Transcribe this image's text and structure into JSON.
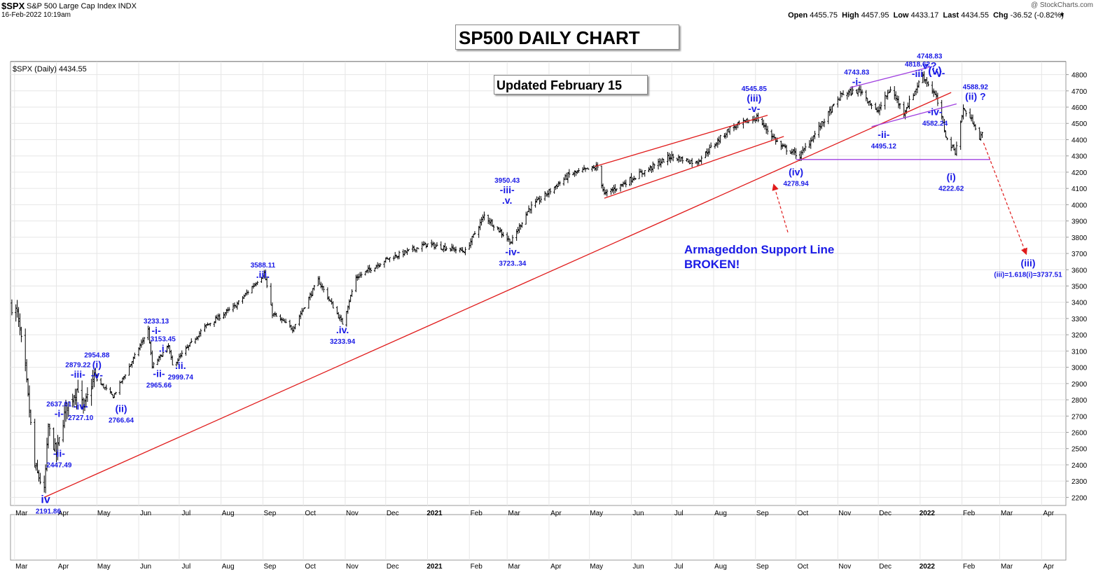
{
  "header": {
    "symbol": "$SPX",
    "description": "S&P 500 Large Cap Index  INDX",
    "date": "16-Feb-2022 10:19am",
    "brand": "@ StockCharts.com",
    "ohlc": {
      "open_label": "Open",
      "open": "4455.75",
      "high_label": "High",
      "high": "4457.95",
      "low_label": "Low",
      "low": "4433.17",
      "last_label": "Last",
      "last": "4434.55",
      "chg_label": "Chg",
      "chg": "-36.52 (-0.82%)"
    }
  },
  "title_box": "SP500 DAILY CHART",
  "updated_box": "Updated February 15",
  "legend": "$SPX (Daily) 4434.55",
  "annotation": {
    "line1": "Armageddon Support Line",
    "line2": "BROKEN!"
  },
  "colors": {
    "price": "#000000",
    "wave_label": "#1a1ae6",
    "support_line": "#e01b1b",
    "channel_purple": "#a040e0",
    "grid": "#e6e6e6"
  },
  "chart_data": {
    "type": "ohlc",
    "title": "SP500 DAILY CHART",
    "ylim": [
      2150,
      4880
    ],
    "yticks": [
      2200,
      2300,
      2400,
      2500,
      2600,
      2700,
      2800,
      2900,
      3000,
      3100,
      3200,
      3300,
      3400,
      3500,
      3600,
      3700,
      3800,
      3900,
      4000,
      4100,
      4200,
      4300,
      4400,
      4500,
      4600,
      4700,
      4800
    ],
    "xlim": [
      "2020-02-27",
      "2022-04-19"
    ],
    "x_ticks": [
      {
        "date": "2020-03-01",
        "label": "Mar"
      },
      {
        "date": "2020-04-01",
        "label": "Apr"
      },
      {
        "date": "2020-05-01",
        "label": "May"
      },
      {
        "date": "2020-06-01",
        "label": "Jun"
      },
      {
        "date": "2020-07-01",
        "label": "Jul"
      },
      {
        "date": "2020-08-01",
        "label": "Aug"
      },
      {
        "date": "2020-09-01",
        "label": "Sep"
      },
      {
        "date": "2020-10-01",
        "label": "Oct"
      },
      {
        "date": "2020-11-01",
        "label": "Nov"
      },
      {
        "date": "2020-12-01",
        "label": "Dec"
      },
      {
        "date": "2021-01-01",
        "label": "2021"
      },
      {
        "date": "2021-02-01",
        "label": "Feb"
      },
      {
        "date": "2021-03-01",
        "label": "Mar"
      },
      {
        "date": "2021-04-01",
        "label": "Apr"
      },
      {
        "date": "2021-05-01",
        "label": "May"
      },
      {
        "date": "2021-06-01",
        "label": "Jun"
      },
      {
        "date": "2021-07-01",
        "label": "Jul"
      },
      {
        "date": "2021-08-01",
        "label": "Aug"
      },
      {
        "date": "2021-09-01",
        "label": "Sep"
      },
      {
        "date": "2021-10-01",
        "label": "Oct"
      },
      {
        "date": "2021-11-01",
        "label": "Nov"
      },
      {
        "date": "2021-12-01",
        "label": "Dec"
      },
      {
        "date": "2022-01-01",
        "label": "2022"
      },
      {
        "date": "2022-02-01",
        "label": "Feb"
      },
      {
        "date": "2022-03-01",
        "label": "Mar"
      },
      {
        "date": "2022-04-01",
        "label": "Apr"
      }
    ],
    "price_anchors": [
      {
        "date": "2020-02-28",
        "close": 3380
      },
      {
        "date": "2020-03-03",
        "close": 3330
      },
      {
        "date": "2020-03-09",
        "close": 2980
      },
      {
        "date": "2020-03-12",
        "close": 2730
      },
      {
        "date": "2020-03-16",
        "close": 2390
      },
      {
        "date": "2020-03-23",
        "close": 2237
      },
      {
        "date": "2020-03-26",
        "close": 2630
      },
      {
        "date": "2020-04-01",
        "close": 2470
      },
      {
        "date": "2020-04-08",
        "close": 2750
      },
      {
        "date": "2020-04-17",
        "close": 2875
      },
      {
        "date": "2020-04-21",
        "close": 2740
      },
      {
        "date": "2020-04-29",
        "close": 2940
      },
      {
        "date": "2020-05-13",
        "close": 2820
      },
      {
        "date": "2020-05-27",
        "close": 3035
      },
      {
        "date": "2020-06-08",
        "close": 3232
      },
      {
        "date": "2020-06-11",
        "close": 3002
      },
      {
        "date": "2020-06-23",
        "close": 3130
      },
      {
        "date": "2020-06-26",
        "close": 3010
      },
      {
        "date": "2020-07-20",
        "close": 3250
      },
      {
        "date": "2020-08-12",
        "close": 3380
      },
      {
        "date": "2020-09-02",
        "close": 3580
      },
      {
        "date": "2020-09-08",
        "close": 3330
      },
      {
        "date": "2020-09-23",
        "close": 3237
      },
      {
        "date": "2020-10-12",
        "close": 3535
      },
      {
        "date": "2020-10-30",
        "close": 3270
      },
      {
        "date": "2020-11-09",
        "close": 3550
      },
      {
        "date": "2020-12-01",
        "close": 3662
      },
      {
        "date": "2020-12-31",
        "close": 3756
      },
      {
        "date": "2021-01-29",
        "close": 3714
      },
      {
        "date": "2021-02-12",
        "close": 3934
      },
      {
        "date": "2021-03-04",
        "close": 3768
      },
      {
        "date": "2021-03-17",
        "close": 3974
      },
      {
        "date": "2021-04-16",
        "close": 4185
      },
      {
        "date": "2021-05-07",
        "close": 4232
      },
      {
        "date": "2021-05-12",
        "close": 4063
      },
      {
        "date": "2021-06-30",
        "close": 4297
      },
      {
        "date": "2021-07-19",
        "close": 4258
      },
      {
        "date": "2021-08-13",
        "close": 4468
      },
      {
        "date": "2021-09-02",
        "close": 4536
      },
      {
        "date": "2021-09-20",
        "close": 4357
      },
      {
        "date": "2021-10-04",
        "close": 4300
      },
      {
        "date": "2021-11-04",
        "close": 4680
      },
      {
        "date": "2021-11-18",
        "close": 4704
      },
      {
        "date": "2021-11-30",
        "close": 4567
      },
      {
        "date": "2021-12-10",
        "close": 4712
      },
      {
        "date": "2021-12-20",
        "close": 4568
      },
      {
        "date": "2022-01-03",
        "close": 4796
      },
      {
        "date": "2022-01-13",
        "close": 4659
      },
      {
        "date": "2022-01-21",
        "close": 4398
      },
      {
        "date": "2022-01-27",
        "close": 4326
      },
      {
        "date": "2022-02-02",
        "close": 4589
      },
      {
        "date": "2022-02-08",
        "close": 4521
      },
      {
        "date": "2022-02-10",
        "close": 4504
      },
      {
        "date": "2022-02-14",
        "close": 4401
      },
      {
        "date": "2022-02-16",
        "close": 4434
      }
    ],
    "trendlines": [
      {
        "name": "Armageddon Support Line",
        "color": "red",
        "points": [
          [
            "2020-03-23",
            2200
          ],
          [
            "2022-01-24",
            4690
          ]
        ]
      },
      {
        "name": "channel-upper",
        "color": "red",
        "points": [
          [
            "2021-05-05",
            4235
          ],
          [
            "2021-09-10",
            4550
          ]
        ]
      },
      {
        "name": "channel-lower",
        "color": "red",
        "points": [
          [
            "2021-05-12",
            4040
          ],
          [
            "2021-09-22",
            4420
          ]
        ]
      },
      {
        "name": "wedge-upper",
        "color": "purple",
        "points": [
          [
            "2021-11-10",
            4720
          ],
          [
            "2022-01-10",
            4850
          ]
        ]
      },
      {
        "name": "wedge-lower",
        "color": "purple",
        "points": [
          [
            "2021-11-26",
            4480
          ],
          [
            "2022-01-28",
            4620
          ]
        ]
      },
      {
        "name": "support-horizontal",
        "color": "purple",
        "points": [
          [
            "2021-10-01",
            4278
          ],
          [
            "2022-02-22",
            4278
          ]
        ]
      }
    ],
    "projection": {
      "from": [
        "2022-02-17",
        4380
      ],
      "to": [
        "2022-03-20",
        3710
      ]
    },
    "pointer_arrow": {
      "from": [
        "2021-09-25",
        3830
      ],
      "to": [
        "2021-09-15",
        4110
      ]
    },
    "wave_labels": [
      {
        "date": "2020-03-24",
        "price": 2165,
        "lines": [
          "iv"
        ],
        "big": true
      },
      {
        "date": "2020-03-26",
        "price": 2100,
        "lines": [
          "2191.86"
        ]
      },
      {
        "date": "2020-04-03",
        "price": 2760,
        "lines": [
          "2637.01",
          "-i-"
        ]
      },
      {
        "date": "2020-04-03",
        "price": 2450,
        "lines": [
          "-ii-",
          "2447.49"
        ]
      },
      {
        "date": "2020-04-17",
        "price": 3000,
        "lines": [
          "2879.22",
          "-iii-"
        ]
      },
      {
        "date": "2020-04-19",
        "price": 2740,
        "lines": [
          "-iv-",
          "2727.10"
        ]
      },
      {
        "date": "2020-05-01",
        "price": 3060,
        "lines": [
          "2954.88",
          "(i)",
          "-v-"
        ]
      },
      {
        "date": "2020-05-19",
        "price": 2725,
        "lines": [
          "(ii)",
          "2766.64"
        ]
      },
      {
        "date": "2020-06-14",
        "price": 3270,
        "lines": [
          "3233.13",
          "-i-"
        ]
      },
      {
        "date": "2020-06-19",
        "price": 3160,
        "lines": [
          "3153.45",
          ".i."
        ]
      },
      {
        "date": "2020-06-16",
        "price": 2940,
        "lines": [
          "-ii-",
          "2965.66"
        ]
      },
      {
        "date": "2020-07-02",
        "price": 2990,
        "lines": [
          ".ii.",
          "2999.74"
        ]
      },
      {
        "date": "2020-09-01",
        "price": 3615,
        "lines": [
          "3588.11",
          ".iii."
        ]
      },
      {
        "date": "2020-10-30",
        "price": 3210,
        "lines": [
          ".iv.",
          "3233.94"
        ]
      },
      {
        "date": "2021-03-01",
        "price": 4135,
        "lines": [
          "3950.43",
          "-iii-",
          ".v."
        ]
      },
      {
        "date": "2021-03-05",
        "price": 3690,
        "lines": [
          "-iv-",
          "3723..34"
        ]
      },
      {
        "date": "2021-08-31",
        "price": 4700,
        "lines": [
          "4545.85",
          "(iii)",
          "-v-"
        ]
      },
      {
        "date": "2021-10-01",
        "price": 4180,
        "lines": [
          "(iv)",
          "4278.94"
        ]
      },
      {
        "date": "2021-11-15",
        "price": 4800,
        "lines": [
          "4743.83",
          "-i-"
        ]
      },
      {
        "date": "2021-12-05",
        "price": 4410,
        "lines": [
          "-ii-",
          "4495.12"
        ]
      },
      {
        "date": "2021-12-30",
        "price": 4850,
        "lines": [
          "4818.62",
          "-iii"
        ]
      },
      {
        "date": "2022-01-12",
        "price": 4800,
        "lines": [
          "(v)"
        ],
        "big": true
      },
      {
        "date": "2022-01-15",
        "price": 4790,
        "lines": [
          "-v-"
        ]
      },
      {
        "date": "2022-01-12",
        "price": 4550,
        "lines": [
          "-iv-",
          "4582.24"
        ]
      },
      {
        "date": "2022-01-08",
        "price": 4900,
        "lines": [
          "4748.83",
          "v ?"
        ]
      },
      {
        "date": "2022-01-24",
        "price": 4150,
        "lines": [
          "(i)",
          "4222.62"
        ]
      },
      {
        "date": "2022-02-11",
        "price": 4710,
        "lines": [
          "4588.92",
          "(ii) ?"
        ]
      },
      {
        "date": "2022-03-22",
        "price": 3620,
        "lines": [
          "(iii)",
          "(iii)=1.618(i)=3737.51"
        ]
      }
    ]
  }
}
